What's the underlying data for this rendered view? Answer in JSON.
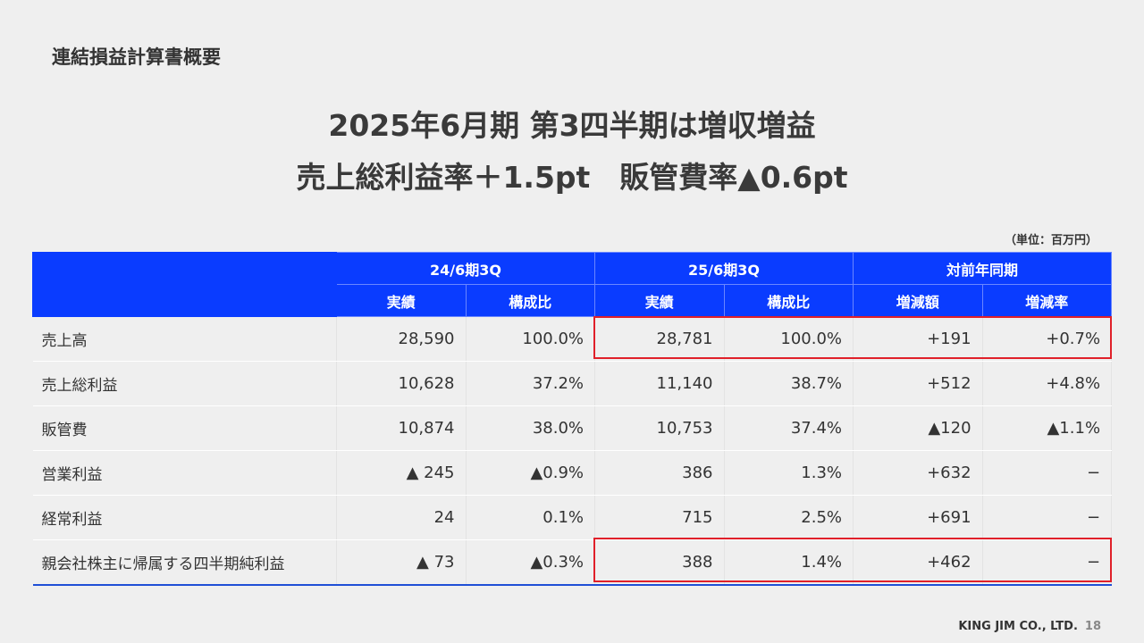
{
  "section_title": "連結損益計算書概要",
  "headline": {
    "line1": "2025年6月期 第3四半期は増収増益",
    "line2": "売上総利益率＋1.5pt　販管費率▲0.6pt"
  },
  "unit": "（単位：百万円）",
  "table": {
    "group_headers": [
      "24/6期3Q",
      "25/6期3Q",
      "対前年同期"
    ],
    "sub_headers": [
      "実績",
      "構成比",
      "実績",
      "構成比",
      "増減額",
      "増減率"
    ],
    "rows": [
      {
        "label": "売上高",
        "values": [
          "28,590",
          "100.0%",
          "28,781",
          "100.0%",
          "+191",
          "+0.7%"
        ]
      },
      {
        "label": "売上総利益",
        "values": [
          "10,628",
          "37.2%",
          "11,140",
          "38.7%",
          "+512",
          "+4.8%"
        ]
      },
      {
        "label": "販管費",
        "values": [
          "10,874",
          "38.0%",
          "10,753",
          "37.4%",
          "▲120",
          "▲1.1%"
        ]
      },
      {
        "label": "営業利益",
        "values": [
          "▲ 245",
          "▲0.9%",
          "386",
          "1.3%",
          "+632",
          "−"
        ]
      },
      {
        "label": "経常利益",
        "values": [
          "24",
          "0.1%",
          "715",
          "2.5%",
          "+691",
          "−"
        ]
      },
      {
        "label": "親会社株主に帰属する四半期純利益",
        "values": [
          "▲ 73",
          "▲0.3%",
          "388",
          "1.4%",
          "+462",
          "−"
        ]
      }
    ]
  },
  "colors": {
    "header_bg": "#0a3cff",
    "highlight": "#e0202a",
    "background": "#efefef"
  },
  "footer": {
    "company": "KING JIM CO., LTD.",
    "page": "18"
  }
}
